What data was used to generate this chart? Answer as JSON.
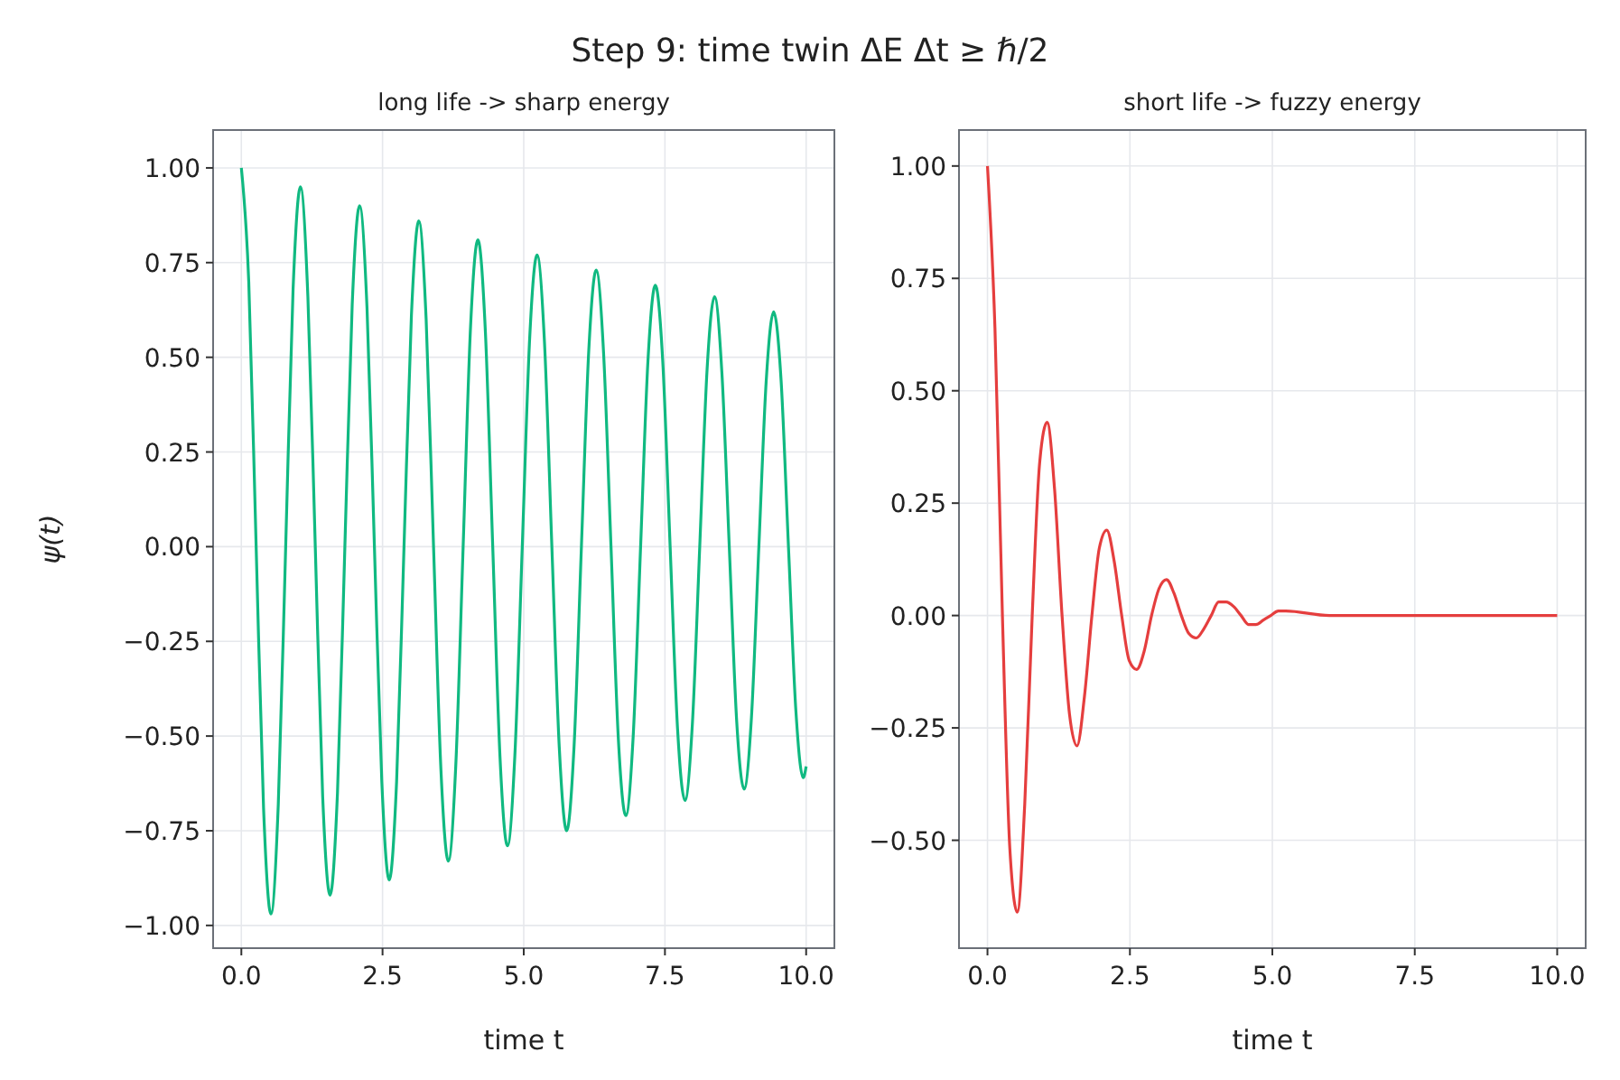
{
  "chart_data": [
    {
      "type": "line",
      "title": "Step 9: time twin  ΔE Δt ≥ ℏ/2",
      "subtitle": "long life -> sharp energy",
      "xlabel": "time t",
      "ylabel": "ψ(t)",
      "grid": true,
      "marker": "none",
      "line_style": "solid",
      "xlim": [
        -0.5,
        10.5
      ],
      "ylim": [
        -1.06,
        1.1
      ],
      "xticks": [
        {
          "value": 0,
          "label": "0.0"
        },
        {
          "value": 2.5,
          "label": "2.5"
        },
        {
          "value": 5,
          "label": "5.0"
        },
        {
          "value": 7.5,
          "label": "7.5"
        },
        {
          "value": 10,
          "label": "10.0"
        }
      ],
      "yticks": [
        {
          "value": -1,
          "label": "−1.00"
        },
        {
          "value": -0.75,
          "label": "−0.75"
        },
        {
          "value": -0.5,
          "label": "−0.50"
        },
        {
          "value": -0.25,
          "label": "−0.25"
        },
        {
          "value": 0,
          "label": "0.00"
        },
        {
          "value": 0.25,
          "label": "0.25"
        },
        {
          "value": 0.5,
          "label": "0.50"
        },
        {
          "value": 0.75,
          "label": "0.75"
        },
        {
          "value": 1,
          "label": "1.00"
        }
      ],
      "x": [
        0,
        0.131,
        0.262,
        0.393,
        0.524,
        0.654,
        0.785,
        0.916,
        1.047,
        1.178,
        1.309,
        1.44,
        1.571,
        1.702,
        1.833,
        1.963,
        2.094,
        2.225,
        2.356,
        2.487,
        2.618,
        2.749,
        2.88,
        3.011,
        3.142,
        3.272,
        3.403,
        3.534,
        3.665,
        3.796,
        3.927,
        4.058,
        4.189,
        4.32,
        4.451,
        4.581,
        4.712,
        4.843,
        4.974,
        5.105,
        5.236,
        5.367,
        5.498,
        5.629,
        5.76,
        5.89,
        6.021,
        6.152,
        6.283,
        6.414,
        6.545,
        6.676,
        6.807,
        6.938,
        7.069,
        7.199,
        7.33,
        7.461,
        7.592,
        7.723,
        7.854,
        7.985,
        8.116,
        8.247,
        8.378,
        8.508,
        8.639,
        8.77,
        8.901,
        9.032,
        9.163,
        9.294,
        9.425,
        9.556,
        9.687,
        9.817,
        9.948,
        10
      ],
      "series": [
        {
          "color": "#10b981",
          "values": [
            1,
            0.7,
            0,
            -0.69,
            -0.97,
            -0.68,
            0,
            0.68,
            0.95,
            0.66,
            0,
            -0.66,
            -0.92,
            -0.65,
            0,
            0.64,
            0.9,
            0.63,
            0,
            -0.62,
            -0.88,
            -0.62,
            0,
            0.61,
            0.86,
            0.6,
            0,
            -0.59,
            -0.83,
            -0.58,
            0,
            0.58,
            0.81,
            0.57,
            0,
            -0.56,
            -0.79,
            -0.55,
            0,
            0.55,
            0.77,
            0.54,
            0,
            -0.53,
            -0.75,
            -0.53,
            0,
            0.52,
            0.73,
            0.51,
            0,
            -0.51,
            -0.71,
            -0.5,
            0,
            0.49,
            0.69,
            0.49,
            0,
            -0.48,
            -0.67,
            -0.47,
            0,
            0.47,
            0.66,
            0.46,
            0,
            -0.46,
            -0.64,
            -0.45,
            0,
            0.44,
            0.62,
            0.44,
            0,
            -0.43,
            -0.61,
            -0.58
          ]
        }
      ]
    },
    {
      "type": "line",
      "subtitle": "short life -> fuzzy energy",
      "xlabel": "time t",
      "grid": true,
      "marker": "none",
      "line_style": "solid",
      "xlim": [
        -0.5,
        10.5
      ],
      "ylim": [
        -0.74,
        1.08
      ],
      "xticks": [
        {
          "value": 0,
          "label": "0.0"
        },
        {
          "value": 2.5,
          "label": "2.5"
        },
        {
          "value": 5,
          "label": "5.0"
        },
        {
          "value": 7.5,
          "label": "7.5"
        },
        {
          "value": 10,
          "label": "10.0"
        }
      ],
      "yticks": [
        {
          "value": -0.5,
          "label": "−0.50"
        },
        {
          "value": -0.25,
          "label": "−0.25"
        },
        {
          "value": 0,
          "label": "0.00"
        },
        {
          "value": 0.25,
          "label": "0.25"
        },
        {
          "value": 0.5,
          "label": "0.50"
        },
        {
          "value": 0.75,
          "label": "0.75"
        },
        {
          "value": 1,
          "label": "1.00"
        }
      ],
      "x": [
        0,
        0.131,
        0.262,
        0.393,
        0.524,
        0.654,
        0.785,
        0.916,
        1.047,
        1.178,
        1.309,
        1.44,
        1.571,
        1.702,
        1.833,
        1.963,
        2.094,
        2.225,
        2.356,
        2.487,
        2.618,
        2.749,
        2.88,
        3.011,
        3.142,
        3.272,
        3.403,
        3.534,
        3.665,
        3.796,
        3.927,
        4.058,
        4.189,
        4.32,
        4.451,
        4.581,
        4.712,
        4.843,
        4.974,
        5.105,
        5.236,
        6,
        7,
        8,
        9,
        10
      ],
      "series": [
        {
          "color": "#e53e3e",
          "values": [
            1,
            0.64,
            0,
            -0.52,
            -0.66,
            -0.42,
            0,
            0.34,
            0.43,
            0.28,
            0,
            -0.22,
            -0.29,
            -0.18,
            0,
            0.15,
            0.19,
            0.12,
            0,
            -0.1,
            -0.12,
            -0.08,
            0,
            0.06,
            0.08,
            0.05,
            0,
            -0.04,
            -0.05,
            -0.03,
            0,
            0.03,
            0.03,
            0.02,
            0,
            -0.02,
            -0.02,
            -0.01,
            0,
            0.01,
            0.01,
            0,
            0,
            0,
            0,
            0
          ]
        }
      ]
    }
  ]
}
